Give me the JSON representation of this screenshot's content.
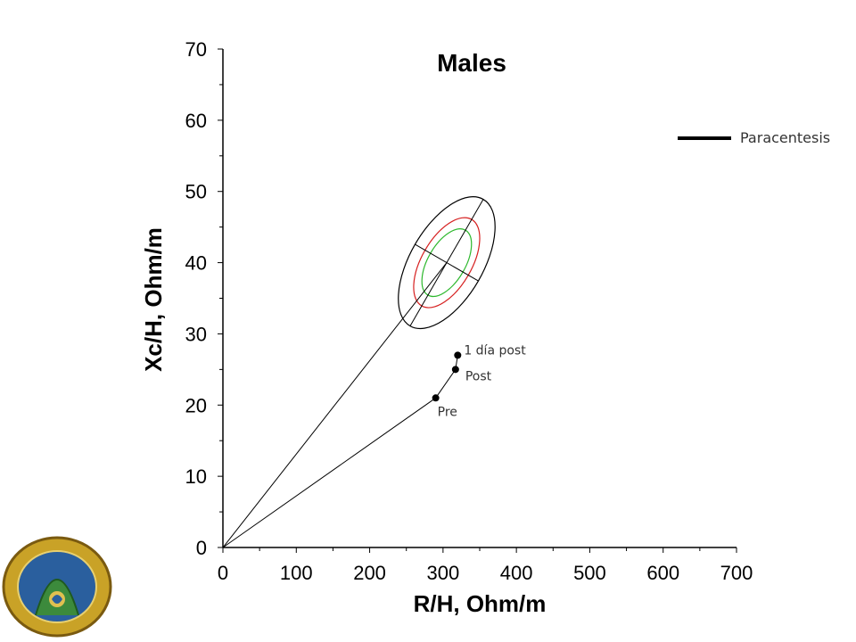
{
  "chart_data": {
    "type": "scatter",
    "title": "Males",
    "xlabel": "R/H, Ohm/m",
    "ylabel": "Xc/H, Ohm/m",
    "xlim": [
      0,
      700
    ],
    "ylim": [
      0,
      70
    ],
    "x_ticks": [
      "0",
      "100",
      "200",
      "300",
      "400",
      "500",
      "600",
      "700"
    ],
    "y_ticks": [
      "0",
      "10",
      "20",
      "30",
      "40",
      "50",
      "60",
      "70"
    ],
    "legend": {
      "label": "Paracentesis",
      "placement": "top-right"
    },
    "series": [
      {
        "name": "Paracentesis",
        "points": [
          {
            "x": 290,
            "y": 21,
            "label": "Pre"
          },
          {
            "x": 317,
            "y": 25,
            "label": "Post"
          },
          {
            "x": 320,
            "y": 27,
            "label": "1 día post"
          }
        ]
      }
    ],
    "tolerance_ellipses": {
      "center": {
        "x": 305,
        "y": 40
      },
      "colors": {
        "50%": "#2db82d",
        "75%": "#d62020",
        "95%": "#000000"
      }
    },
    "colors": {
      "series_line": "#000000",
      "axis": "#000000"
    }
  }
}
